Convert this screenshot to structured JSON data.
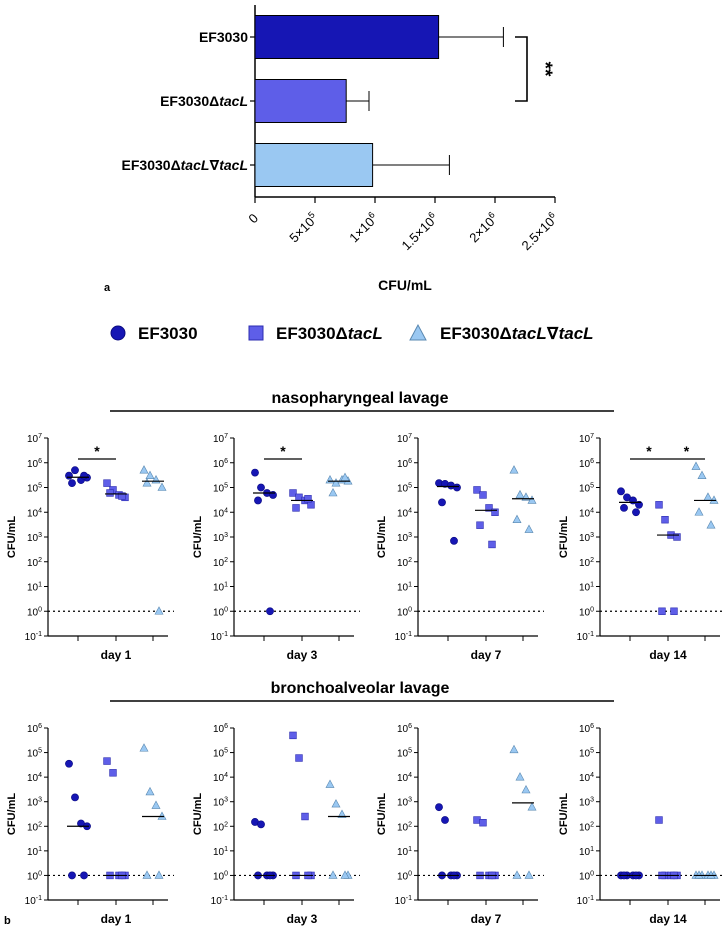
{
  "colors": {
    "s1": "#1616b4",
    "s2": "#5e5ee8",
    "s3": "#9ac8f2",
    "s1_dark": "#0a0a80",
    "s2_dark": "#2c2cb0",
    "s3_dark": "#5a88b0"
  },
  "legend": {
    "items": [
      {
        "base": "EF3030",
        "italic": ""
      },
      {
        "base": "EF3030Δ",
        "italic": "tacL"
      },
      {
        "base": "EF3030Δ",
        "italic": "tacL",
        "mid": "∇",
        "italic2": "tacL"
      }
    ]
  },
  "panel_labels": {
    "a": "a",
    "b": "b"
  },
  "section_titles": {
    "naso": "nasopharyngeal lavage",
    "bal": "bronchoalveolar lavage"
  },
  "chart_data": [
    {
      "type": "bar",
      "orientation": "horizontal",
      "panel": "a",
      "xlabel": "CFU/mL",
      "xlim": [
        0,
        2500000
      ],
      "xticks": [
        0,
        500000,
        1000000,
        1500000,
        2000000,
        2500000
      ],
      "xtick_labels": [
        {
          "text": "0"
        },
        {
          "mant": "5×10",
          "exp": "5"
        },
        {
          "mant": "1×10",
          "exp": "6"
        },
        {
          "mant": "1.5×10",
          "exp": "6"
        },
        {
          "mant": "2×10",
          "exp": "6"
        },
        {
          "mant": "2.5×10",
          "exp": "6"
        }
      ],
      "categories": [
        {
          "base": "EF3030",
          "italic": ""
        },
        {
          "base": "EF3030Δ",
          "italic": "tacL"
        },
        {
          "base": "EF3030Δ",
          "italic": "tacL",
          "mid": "∇",
          "italic2": "tacL"
        }
      ],
      "values": [
        1530000,
        760000,
        980000
      ],
      "errors": [
        540000,
        190000,
        640000
      ],
      "significance": {
        "between": [
          0,
          1
        ],
        "label": "**"
      }
    },
    {
      "type": "scatter",
      "panel": "b",
      "section": "nasopharyngeal lavage",
      "ylabel": "CFU/mL",
      "yscale": "log",
      "ylim_exp": [
        -1,
        7
      ],
      "yticks_exp": [
        -1,
        0,
        1,
        2,
        3,
        4,
        5,
        6,
        7
      ],
      "detection_limit": 1,
      "panels": [
        {
          "day": "day 1",
          "series": [
            {
              "values": [
                300000,
                500000,
                200000,
                250000,
                150000,
                300000
              ],
              "median": 260000
            },
            {
              "values": [
                150000,
                80000,
                50000,
                40000,
                60000,
                45000
              ],
              "median": 55000
            },
            {
              "values": [
                500000,
                300000,
                200000,
                100000,
                150000,
                1
              ],
              "median": 180000
            }
          ],
          "sig": [
            {
              "between": [
                0,
                1
              ],
              "label": "*"
            }
          ]
        },
        {
          "day": "day 3",
          "series": [
            {
              "values": [
                400000,
                100000,
                60000,
                50000,
                30000,
                1
              ],
              "median": 60000
            },
            {
              "values": [
                60000,
                40000,
                30000,
                20000,
                15000,
                35000
              ],
              "median": 30000
            },
            {
              "values": [
                200000,
                150000,
                200000,
                180000,
                60000,
                250000
              ],
              "median": 180000
            }
          ],
          "sig": [
            {
              "between": [
                0,
                1
              ],
              "label": "*"
            }
          ]
        },
        {
          "day": "day 7",
          "series": [
            {
              "values": [
                150000,
                140000,
                120000,
                100000,
                25000,
                700
              ],
              "median": 110000
            },
            {
              "values": [
                80000,
                50000,
                15000,
                10000,
                3000,
                500
              ],
              "median": 12000
            },
            {
              "values": [
                500000,
                50000,
                40000,
                30000,
                5000,
                2000
              ],
              "median": 35000
            }
          ],
          "sig": []
        },
        {
          "day": "day 14",
          "series": [
            {
              "values": [
                70000,
                40000,
                30000,
                20000,
                15000,
                10000
              ],
              "median": 25000
            },
            {
              "values": [
                20000,
                5000,
                1200,
                1000,
                1,
                1
              ],
              "median": 1200
            },
            {
              "values": [
                700000,
                300000,
                40000,
                30000,
                10000,
                3000
              ],
              "median": 30000
            }
          ],
          "sig": [
            {
              "between": [
                0,
                1
              ],
              "label": "*"
            },
            {
              "between": [
                1,
                2
              ],
              "label": "*"
            }
          ]
        }
      ]
    },
    {
      "type": "scatter",
      "panel": "b",
      "section": "bronchoalveolar lavage",
      "ylabel": "CFU/mL",
      "yscale": "log",
      "ylim_exp": [
        -1,
        6
      ],
      "yticks_exp": [
        -1,
        0,
        1,
        2,
        3,
        4,
        5,
        6
      ],
      "detection_limit": 1,
      "panels": [
        {
          "day": "day 1",
          "series": [
            {
              "values": [
                35000,
                1500,
                130,
                100,
                1,
                1
              ],
              "median": 100
            },
            {
              "values": [
                45000,
                15000,
                1,
                1,
                1,
                1
              ],
              "median": 1
            },
            {
              "values": [
                150000,
                2500,
                700,
                250,
                1,
                1
              ],
              "median": 250
            }
          ],
          "sig": []
        },
        {
          "day": "day 3",
          "series": [
            {
              "values": [
                150,
                120,
                1,
                1,
                1,
                1
              ],
              "median": 1
            },
            {
              "values": [
                500000,
                60000,
                250,
                1,
                1,
                1
              ],
              "median": 1
            },
            {
              "values": [
                5000,
                800,
                300,
                1,
                1,
                1
              ],
              "median": 250
            }
          ],
          "sig": []
        },
        {
          "day": "day 7",
          "series": [
            {
              "values": [
                600,
                180,
                1,
                1,
                1,
                1
              ],
              "median": 1
            },
            {
              "values": [
                180,
                140,
                1,
                1,
                1,
                1
              ],
              "median": 1
            },
            {
              "values": [
                130000,
                10000,
                3000,
                600,
                1,
                1
              ],
              "median": 900
            }
          ],
          "sig": []
        },
        {
          "day": "day 14",
          "series": [
            {
              "values": [
                1,
                1,
                1,
                1,
                1,
                1
              ],
              "median": 1
            },
            {
              "values": [
                180,
                1,
                1,
                1,
                1,
                1
              ],
              "median": 1
            },
            {
              "values": [
                1,
                1,
                1,
                1,
                1,
                1
              ],
              "median": 1
            }
          ],
          "sig": []
        }
      ]
    }
  ]
}
